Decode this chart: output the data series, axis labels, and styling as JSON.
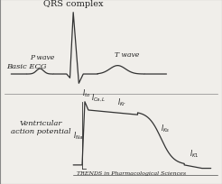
{
  "background_color": "#f0eeea",
  "border_color": "#888888",
  "title_ecg": "QRS complex",
  "label_ecg": "Basic ECG",
  "label_pwave": "P wave",
  "label_twave": "T wave",
  "label_vap": "Ventricular\naction potential",
  "footer": "TRENDS in Pharmacological Sciences",
  "text_color": "#222222",
  "line_color": "#333333",
  "font_size_title": 7,
  "font_size_label": 6,
  "font_size_footer": 4.5
}
